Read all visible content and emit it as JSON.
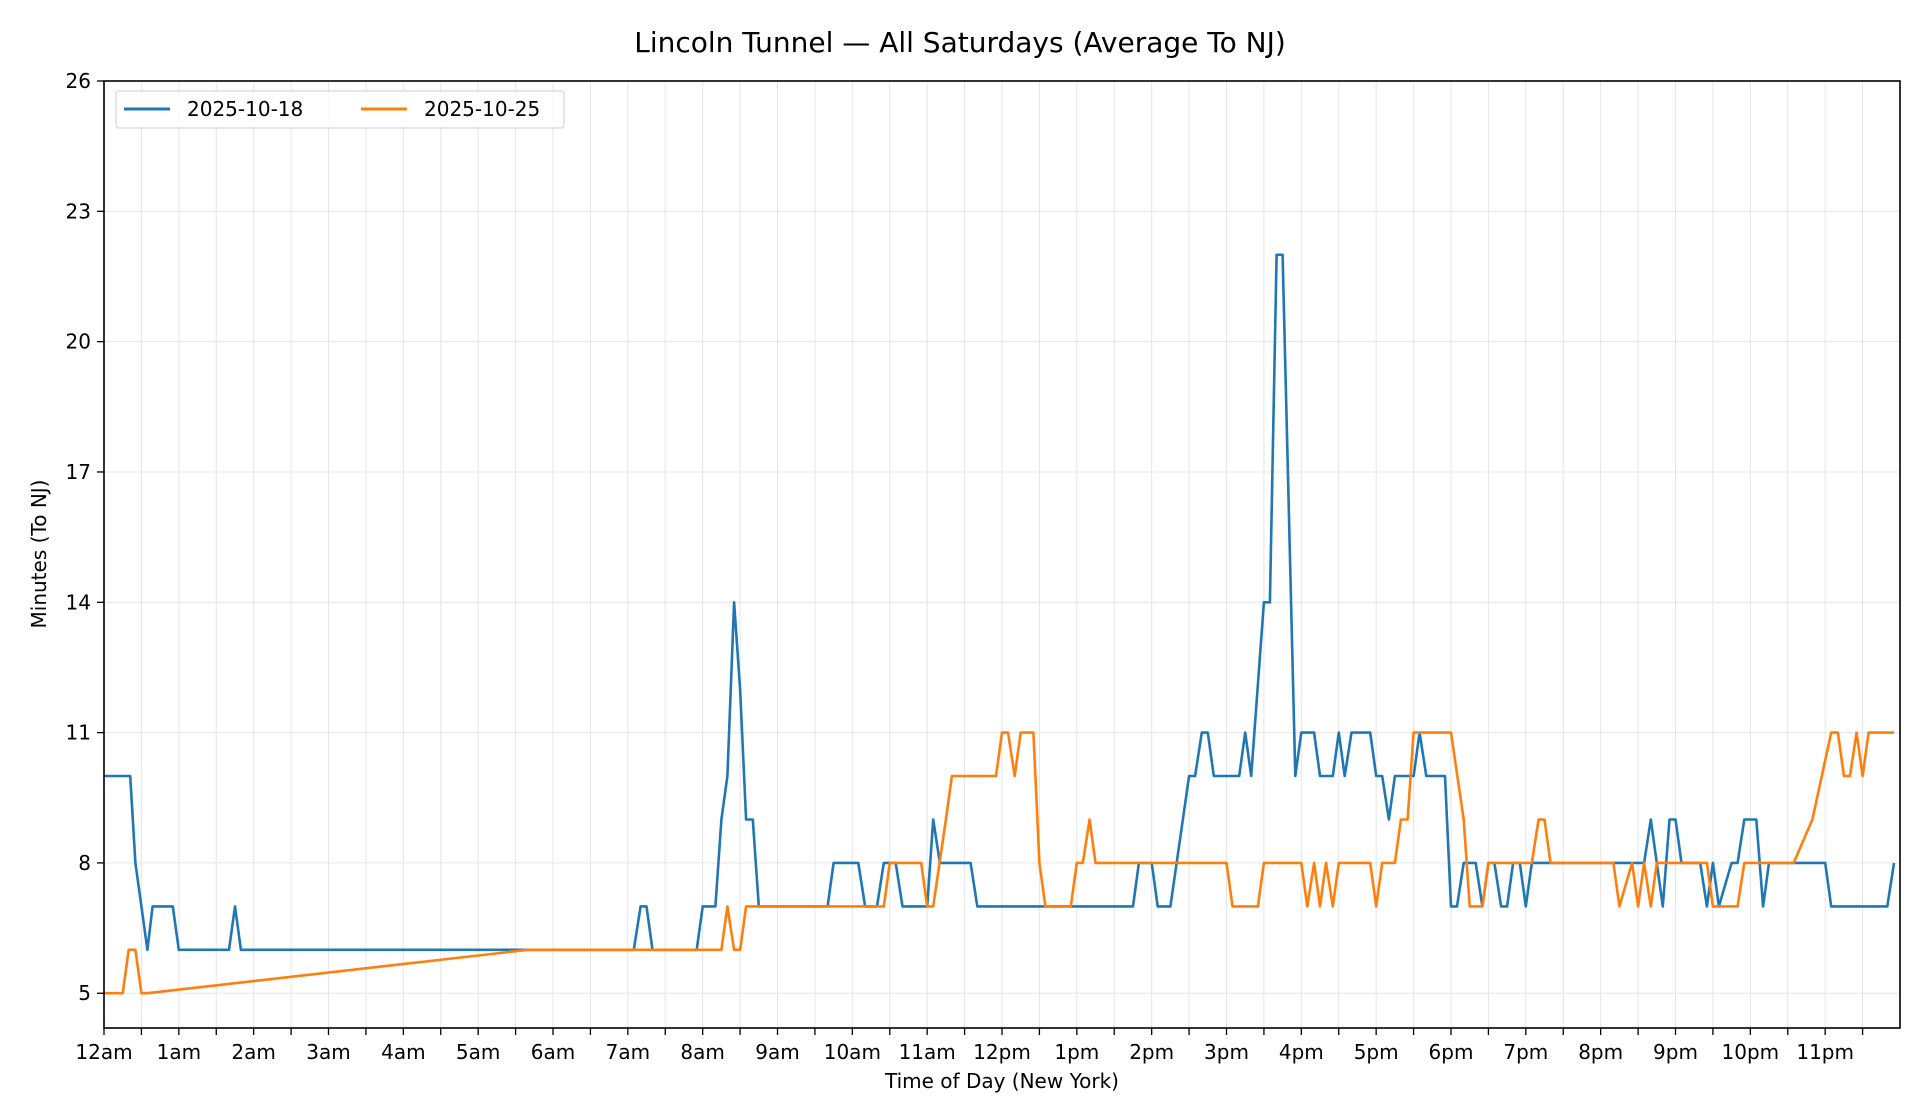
{
  "chart_data": {
    "type": "line",
    "title": "Lincoln Tunnel — All Saturdays (Average To NJ)",
    "xlabel": "Time of Day (New York)",
    "ylabel": "Minutes (To NJ)",
    "xlim": [
      0,
      24
    ],
    "ylim": [
      4.2,
      26
    ],
    "yticks": [
      5,
      8,
      11,
      14,
      17,
      20,
      23,
      26
    ],
    "xticks": [
      0,
      1,
      2,
      3,
      4,
      5,
      6,
      7,
      8,
      9,
      10,
      11,
      12,
      13,
      14,
      15,
      16,
      17,
      18,
      19,
      20,
      21,
      22,
      23
    ],
    "xtick_labels": [
      "12am",
      "1am",
      "2am",
      "3am",
      "4am",
      "5am",
      "6am",
      "7am",
      "8am",
      "9am",
      "10am",
      "11am",
      "12pm",
      "1pm",
      "2pm",
      "3pm",
      "4pm",
      "5pm",
      "6pm",
      "7pm",
      "8pm",
      "9pm",
      "10pm",
      "11pm"
    ],
    "grid": true,
    "legend_position": "top-left",
    "series": [
      {
        "name": "2025-10-18",
        "color": "#1f77b4",
        "points": [
          [
            0,
            10
          ],
          [
            0.35,
            10
          ],
          [
            0.42,
            8
          ],
          [
            0.58,
            6
          ],
          [
            0.65,
            7
          ],
          [
            0.92,
            7
          ],
          [
            1.0,
            6
          ],
          [
            1.67,
            6
          ],
          [
            1.75,
            7
          ],
          [
            1.83,
            6
          ],
          [
            7.08,
            6
          ],
          [
            7.17,
            7
          ],
          [
            7.25,
            7
          ],
          [
            7.33,
            6
          ],
          [
            7.92,
            6
          ],
          [
            8.0,
            7
          ],
          [
            8.17,
            7
          ],
          [
            8.25,
            9
          ],
          [
            8.33,
            10
          ],
          [
            8.42,
            14
          ],
          [
            8.5,
            12
          ],
          [
            8.58,
            9
          ],
          [
            8.67,
            9
          ],
          [
            8.75,
            7
          ],
          [
            9.67,
            7
          ],
          [
            9.75,
            8
          ],
          [
            10.08,
            8
          ],
          [
            10.17,
            7
          ],
          [
            10.33,
            7
          ],
          [
            10.42,
            8
          ],
          [
            10.58,
            8
          ],
          [
            10.67,
            7
          ],
          [
            11.0,
            7
          ],
          [
            11.08,
            9
          ],
          [
            11.17,
            8
          ],
          [
            11.58,
            8
          ],
          [
            11.67,
            7
          ],
          [
            13.5,
            7
          ],
          [
            13.75,
            7
          ],
          [
            13.83,
            8
          ],
          [
            14.0,
            8
          ],
          [
            14.08,
            7
          ],
          [
            14.25,
            7
          ],
          [
            14.5,
            10
          ],
          [
            14.58,
            10
          ],
          [
            14.67,
            11
          ],
          [
            14.75,
            11
          ],
          [
            14.83,
            10
          ],
          [
            15.17,
            10
          ],
          [
            15.25,
            11
          ],
          [
            15.33,
            10
          ],
          [
            15.5,
            14
          ],
          [
            15.58,
            14
          ],
          [
            15.67,
            22
          ],
          [
            15.75,
            22
          ],
          [
            15.92,
            10
          ],
          [
            16.0,
            11
          ],
          [
            16.17,
            11
          ],
          [
            16.25,
            10
          ],
          [
            16.42,
            10
          ],
          [
            16.5,
            11
          ],
          [
            16.58,
            10
          ],
          [
            16.67,
            11
          ],
          [
            16.92,
            11
          ],
          [
            17.0,
            10
          ],
          [
            17.08,
            10
          ],
          [
            17.17,
            9
          ],
          [
            17.25,
            10
          ],
          [
            17.5,
            10
          ],
          [
            17.58,
            11
          ],
          [
            17.67,
            10
          ],
          [
            17.92,
            10
          ],
          [
            18.0,
            7
          ],
          [
            18.08,
            7
          ],
          [
            18.17,
            8
          ],
          [
            18.33,
            8
          ],
          [
            18.42,
            7
          ],
          [
            18.5,
            8
          ],
          [
            18.58,
            8
          ],
          [
            18.67,
            7
          ],
          [
            18.75,
            7
          ],
          [
            18.83,
            8
          ],
          [
            18.92,
            8
          ],
          [
            19.0,
            7
          ],
          [
            19.08,
            8
          ],
          [
            20.58,
            8
          ],
          [
            20.67,
            9
          ],
          [
            20.83,
            7
          ],
          [
            20.92,
            9
          ],
          [
            21.0,
            9
          ],
          [
            21.08,
            8
          ],
          [
            21.33,
            8
          ],
          [
            21.42,
            7
          ],
          [
            21.5,
            8
          ],
          [
            21.58,
            7
          ],
          [
            21.75,
            8
          ],
          [
            21.83,
            8
          ],
          [
            21.92,
            9
          ],
          [
            22.08,
            9
          ],
          [
            22.17,
            7
          ],
          [
            22.25,
            8
          ],
          [
            23.0,
            8
          ],
          [
            23.08,
            7
          ],
          [
            23.83,
            7
          ],
          [
            23.92,
            8
          ]
        ]
      },
      {
        "name": "2025-10-25",
        "color": "#ff7f0e",
        "points": [
          [
            0,
            5
          ],
          [
            0.25,
            5
          ],
          [
            0.33,
            6
          ],
          [
            0.42,
            6
          ],
          [
            0.5,
            5
          ],
          [
            0.58,
            5
          ],
          [
            5.67,
            6
          ],
          [
            8.25,
            6
          ],
          [
            8.33,
            7
          ],
          [
            8.42,
            6
          ],
          [
            8.5,
            6
          ],
          [
            8.58,
            7
          ],
          [
            10.42,
            7
          ],
          [
            10.5,
            8
          ],
          [
            10.92,
            8
          ],
          [
            11.0,
            7
          ],
          [
            11.08,
            7
          ],
          [
            11.25,
            9
          ],
          [
            11.33,
            10
          ],
          [
            11.92,
            10
          ],
          [
            12.0,
            11
          ],
          [
            12.08,
            11
          ],
          [
            12.17,
            10
          ],
          [
            12.25,
            11
          ],
          [
            12.42,
            11
          ],
          [
            12.5,
            8
          ],
          [
            12.58,
            7
          ],
          [
            12.92,
            7
          ],
          [
            13.0,
            8
          ],
          [
            13.08,
            8
          ],
          [
            13.17,
            9
          ],
          [
            13.25,
            8
          ],
          [
            14.42,
            8
          ],
          [
            15.0,
            8
          ],
          [
            15.08,
            7
          ],
          [
            15.42,
            7
          ],
          [
            15.5,
            8
          ],
          [
            16.0,
            8
          ],
          [
            16.08,
            7
          ],
          [
            16.17,
            8
          ],
          [
            16.25,
            7
          ],
          [
            16.33,
            8
          ],
          [
            16.42,
            7
          ],
          [
            16.5,
            8
          ],
          [
            16.92,
            8
          ],
          [
            17.0,
            7
          ],
          [
            17.08,
            8
          ],
          [
            17.25,
            8
          ],
          [
            17.33,
            9
          ],
          [
            17.42,
            9
          ],
          [
            17.5,
            11
          ],
          [
            18.0,
            11
          ],
          [
            18.17,
            9
          ],
          [
            18.25,
            7
          ],
          [
            18.42,
            7
          ],
          [
            18.5,
            8
          ],
          [
            19.08,
            8
          ],
          [
            19.17,
            9
          ],
          [
            19.25,
            9
          ],
          [
            19.33,
            8
          ],
          [
            20.17,
            8
          ],
          [
            20.25,
            7
          ],
          [
            20.42,
            8
          ],
          [
            20.5,
            7
          ],
          [
            20.58,
            8
          ],
          [
            20.67,
            7
          ],
          [
            20.75,
            8
          ],
          [
            21.42,
            8
          ],
          [
            21.5,
            7
          ],
          [
            21.83,
            7
          ],
          [
            21.92,
            8
          ],
          [
            22.58,
            8
          ],
          [
            22.83,
            9
          ],
          [
            23.08,
            11
          ],
          [
            23.17,
            11
          ],
          [
            23.25,
            10
          ],
          [
            23.33,
            10
          ],
          [
            23.42,
            11
          ],
          [
            23.5,
            10
          ],
          [
            23.58,
            11
          ],
          [
            23.92,
            11
          ]
        ]
      }
    ]
  }
}
